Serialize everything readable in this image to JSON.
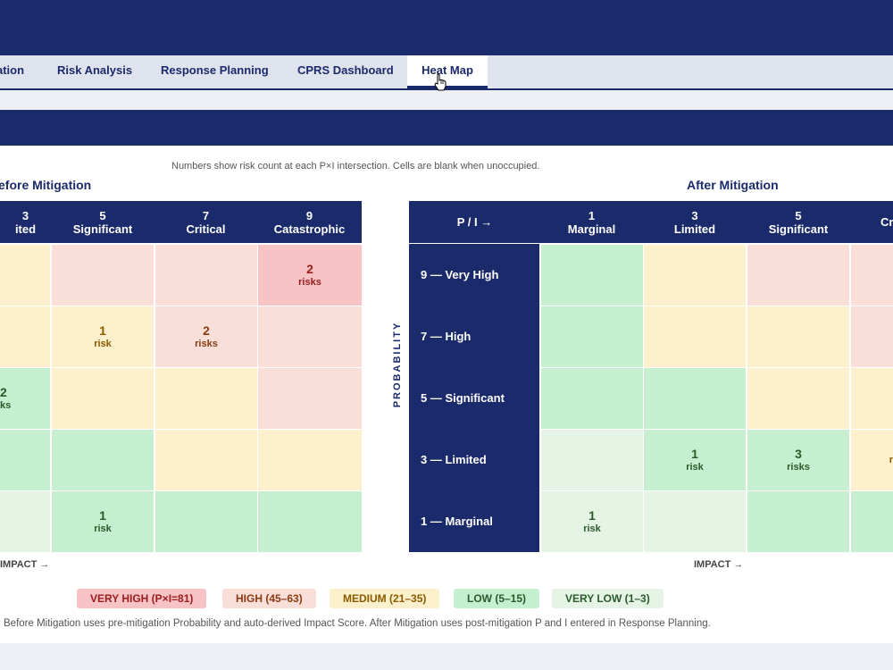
{
  "tabs": [
    {
      "label": "ation",
      "active": false
    },
    {
      "label": "Risk Analysis",
      "active": false
    },
    {
      "label": "Response Planning",
      "active": false
    },
    {
      "label": "CPRS Dashboard",
      "active": false
    },
    {
      "label": "Heat Map",
      "active": true
    }
  ],
  "note": "Numbers show risk count at each P×I intersection. Cells are blank when unoccupied.",
  "before": {
    "title": "efore Mitigation",
    "headers": [
      {
        "num": "3",
        "name": "ited"
      },
      {
        "num": "5",
        "name": "Significant"
      },
      {
        "num": "7",
        "name": "Critical"
      },
      {
        "num": "9",
        "name": "Catastrophic"
      }
    ],
    "axis_label": "IMPACT →"
  },
  "after": {
    "title": "After Mitigation",
    "corner": "P / I →",
    "headers": [
      {
        "num": "1",
        "name": "Marginal"
      },
      {
        "num": "3",
        "name": "Limited"
      },
      {
        "num": "5",
        "name": "Significant"
      },
      {
        "num": "",
        "name": "Cr"
      }
    ],
    "row_labels": [
      "9 — Very High",
      "7 — High",
      "5 — Significant",
      "3 — Limited",
      "1 — Marginal"
    ],
    "axis_label": "IMPACT →"
  },
  "probability_label": "PROBABILITY",
  "legend": [
    {
      "label": "VERY HIGH (P×I=81)",
      "color": "#f7c3c5"
    },
    {
      "label": "HIGH (45–63)",
      "color": "#fadfd8"
    },
    {
      "label": "MEDIUM (21–35)",
      "color": "#fdf0cc"
    },
    {
      "label": "LOW (5–15)",
      "color": "#c6efcf"
    },
    {
      "label": "VERY LOW (1–3)",
      "color": "#e6f4e6"
    }
  ],
  "footnote": "Before Mitigation uses pre-mitigation Probability and auto-derived Impact Score. After Mitigation uses post-mitigation P and I entered in Response Planning.",
  "cells": {
    "b00": {
      "num": "",
      "lbl": ""
    },
    "b01": {
      "num": "",
      "lbl": ""
    },
    "b02": {
      "num": "",
      "lbl": ""
    },
    "b03": {
      "num": "2",
      "lbl": "risks"
    },
    "b10": {
      "num": "",
      "lbl": ""
    },
    "b11": {
      "num": "1",
      "lbl": "risk"
    },
    "b12": {
      "num": "2",
      "lbl": "risks"
    },
    "b13": {
      "num": "",
      "lbl": ""
    },
    "b20": {
      "num": "2",
      "lbl": "ks"
    },
    "b21": {
      "num": "",
      "lbl": ""
    },
    "b22": {
      "num": "",
      "lbl": ""
    },
    "b23": {
      "num": "",
      "lbl": ""
    },
    "b30": {
      "num": "",
      "lbl": ""
    },
    "b31": {
      "num": "",
      "lbl": ""
    },
    "b32": {
      "num": "",
      "lbl": ""
    },
    "b33": {
      "num": "",
      "lbl": ""
    },
    "b40": {
      "num": "",
      "lbl": ""
    },
    "b41": {
      "num": "1",
      "lbl": "risk"
    },
    "b42": {
      "num": "",
      "lbl": ""
    },
    "b43": {
      "num": "",
      "lbl": ""
    },
    "a00": {
      "num": "",
      "lbl": ""
    },
    "a01": {
      "num": "",
      "lbl": ""
    },
    "a02": {
      "num": "",
      "lbl": ""
    },
    "a03": {
      "num": "",
      "lbl": ""
    },
    "a10": {
      "num": "",
      "lbl": ""
    },
    "a11": {
      "num": "",
      "lbl": ""
    },
    "a12": {
      "num": "",
      "lbl": ""
    },
    "a13": {
      "num": "",
      "lbl": ""
    },
    "a20": {
      "num": "",
      "lbl": ""
    },
    "a21": {
      "num": "",
      "lbl": ""
    },
    "a22": {
      "num": "",
      "lbl": ""
    },
    "a23": {
      "num": "",
      "lbl": ""
    },
    "a30": {
      "num": "",
      "lbl": ""
    },
    "a31": {
      "num": "1",
      "lbl": "risk"
    },
    "a32": {
      "num": "3",
      "lbl": "risks"
    },
    "a33": {
      "num": "",
      "lbl": "r"
    },
    "a40": {
      "num": "1",
      "lbl": "risk"
    },
    "a41": {
      "num": "",
      "lbl": ""
    },
    "a42": {
      "num": "",
      "lbl": ""
    },
    "a43": {
      "num": "",
      "lbl": ""
    }
  }
}
